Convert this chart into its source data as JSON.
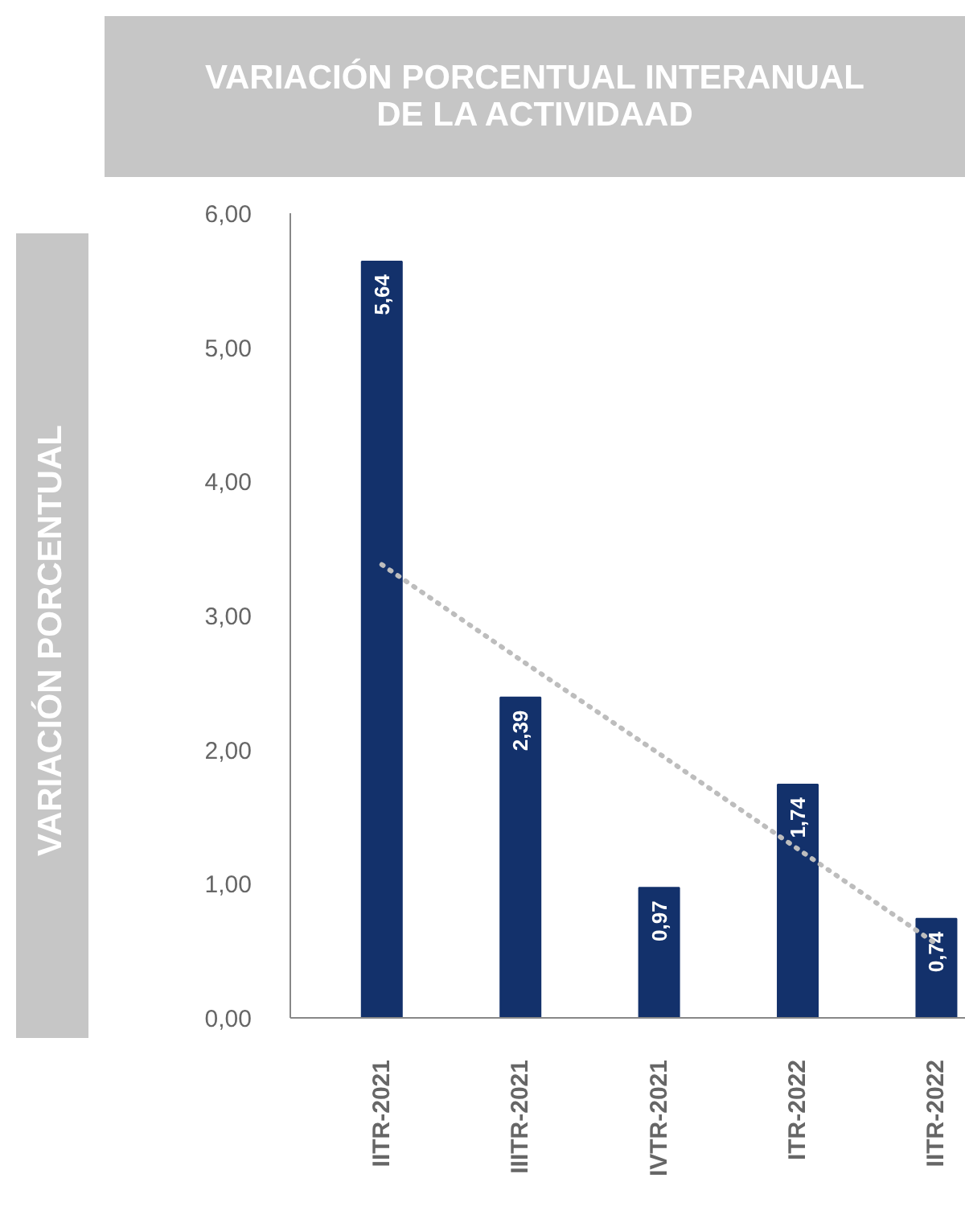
{
  "chart_data": {
    "type": "bar",
    "title": "VARIACIÓN PORCENTUAL INTERANUAL DE LA ACTIVIDAAD",
    "ylabel": "VARIACIÓN PORCENTUAL",
    "categories": [
      "IITR-2021",
      "IIITR-2021",
      "IVTR-2021",
      "ITR-2022",
      "IITR-2022"
    ],
    "series": [
      {
        "color": "#13316b",
        "values": [
          5.64,
          2.39,
          0.97,
          1.74,
          0.74
        ],
        "value_labels": [
          "5,64",
          "2,39",
          "0,97",
          "1,74",
          "0,74"
        ]
      },
      {
        "type": "line",
        "color": "#bdbdbd",
        "line_style": "dotted",
        "values": [
          3.38,
          2.67,
          1.97,
          1.26,
          0.55
        ]
      }
    ],
    "ylim": [
      0,
      6
    ],
    "yticks": [
      {
        "value": 0,
        "label": "0,00"
      },
      {
        "value": 1,
        "label": "1,00"
      },
      {
        "value": 2,
        "label": "2,00"
      },
      {
        "value": 3,
        "label": "3,00"
      },
      {
        "value": 4,
        "label": "4,00"
      },
      {
        "value": 5,
        "label": "5,00"
      },
      {
        "value": 6,
        "label": "6,00"
      }
    ],
    "grid": false
  }
}
